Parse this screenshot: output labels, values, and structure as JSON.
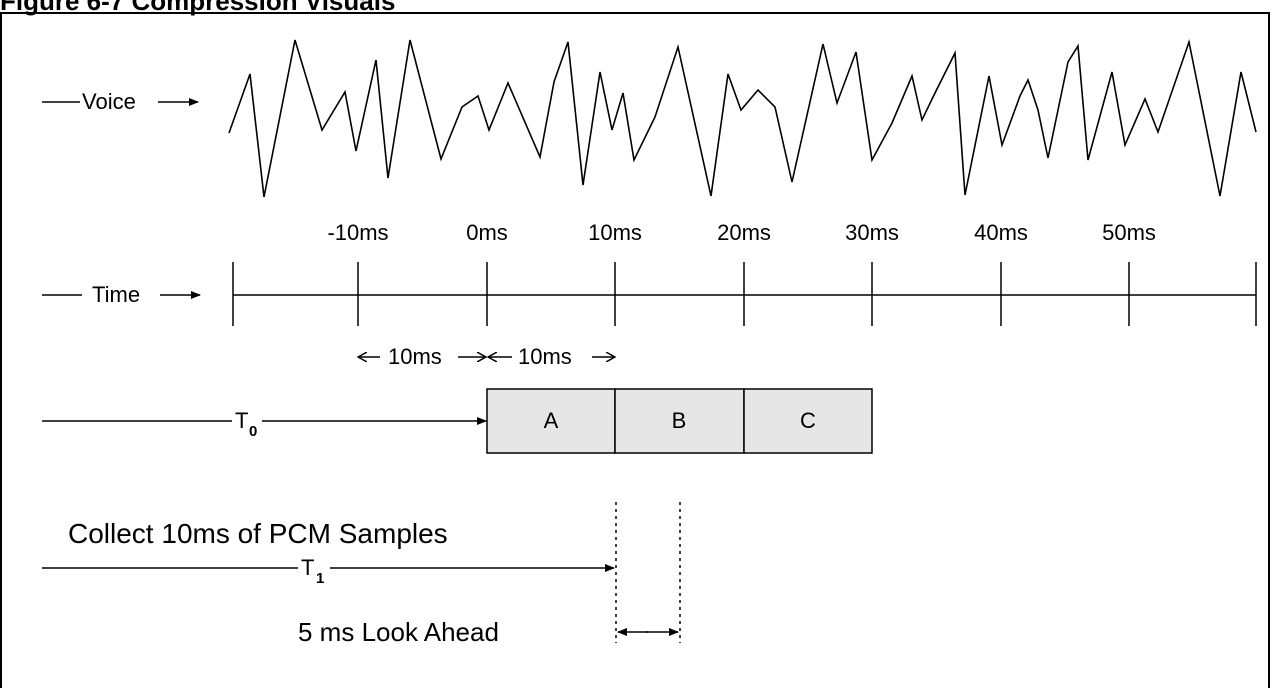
{
  "title": "Figure 6-7 Compression Visuals",
  "labels": {
    "voice": "Voice",
    "time": "Time",
    "t0_base": "T",
    "t0_sub": "0",
    "t1_base": "T",
    "t1_sub": "1",
    "interval_left": "10ms",
    "interval_right": "10ms",
    "collect": "Collect 10ms of PCM Samples",
    "lookahead": "5 ms Look Ahead"
  },
  "timeline": {
    "ticks": [
      "-10ms",
      "0ms",
      "10ms",
      "20ms",
      "30ms",
      "40ms",
      "50ms"
    ]
  },
  "frames": [
    "A",
    "B",
    "C"
  ],
  "colors": {
    "ink": "#000000",
    "frame_fill": "#e6e6e6",
    "background": "#ffffff"
  }
}
